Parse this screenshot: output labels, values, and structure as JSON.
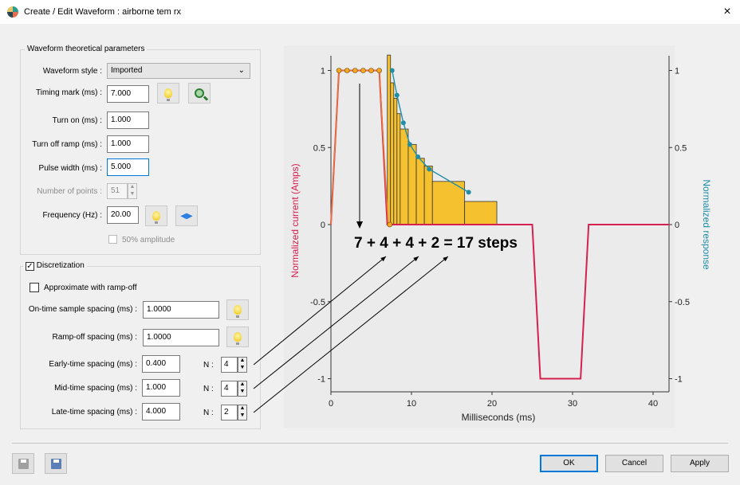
{
  "window": {
    "title": "Create / Edit Waveform : airborne tem rx",
    "close": "×"
  },
  "theoretical": {
    "group_title": "Waveform theoretical parameters",
    "waveform_style_label": "Waveform style :",
    "waveform_style_value": "Imported",
    "timing_mark_label": "Timing mark (ms) :",
    "timing_mark_value": "7.000",
    "turn_on_label": "Turn on (ms) :",
    "turn_on_value": "1.000",
    "turn_off_ramp_label": "Turn off ramp (ms) :",
    "turn_off_ramp_value": "1.000",
    "pulse_width_label": "Pulse width (ms) :",
    "pulse_width_value": "5.000",
    "num_points_label": "Number of points :",
    "num_points_value": "51",
    "frequency_label": "Frequency (Hz) :",
    "frequency_value": "20.00",
    "half_amplitude_label": "50% amplitude"
  },
  "discretization": {
    "group_title": "Discretization",
    "checked": true,
    "approx_label": "Approximate with ramp-off",
    "on_time_label": "On-time sample spacing (ms) :",
    "on_time_value": "1.0000",
    "ramp_off_label": "Ramp-off spacing (ms) :",
    "ramp_off_value": "1.0000",
    "early_label": "Early-time spacing (ms) :",
    "early_value": "0.400",
    "early_n": "4",
    "mid_label": "Mid-time spacing (ms) :",
    "mid_value": "1.000",
    "mid_n": "4",
    "late_label": "Late-time spacing (ms) :",
    "late_value": "4.000",
    "late_n": "2",
    "n_label": "N :"
  },
  "footer": {
    "ok": "OK",
    "cancel": "Cancel",
    "apply": "Apply"
  },
  "annotation": "7 +  4 + 4 + 2 = 17 steps",
  "chart_data": {
    "type": "line",
    "xlabel": "Milliseconds (ms)",
    "ylabel_left": "Normalized current (Amps)",
    "ylabel_right": "Normalized response",
    "xlim": [
      0,
      42
    ],
    "ylim": [
      -1.1,
      1.1
    ],
    "x_ticks": [
      "0",
      "10",
      "20",
      "30",
      "40"
    ],
    "y_ticks": [
      "1",
      "0.5",
      "0",
      "-0.5",
      "-1"
    ],
    "colors": {
      "current": "#d6204f",
      "ramp": "#e8743a",
      "response": "#1f8ea6",
      "bars": "#f5c12e",
      "markers": "#f5a623"
    },
    "current_waveform": {
      "x": [
        0,
        1,
        6,
        7,
        25,
        26,
        31,
        32,
        42
      ],
      "y": [
        0,
        1,
        1,
        0,
        0,
        -1,
        -1,
        0,
        0
      ]
    },
    "on_time_samples": {
      "x": [
        1,
        2,
        3,
        4,
        5,
        6,
        7.3
      ],
      "y": [
        1,
        1,
        1,
        1,
        1,
        1,
        0
      ]
    },
    "response": {
      "x": [
        7.6,
        8.2,
        9.0,
        9.8,
        10.8,
        12.2,
        17.1
      ],
      "y": [
        1.0,
        0.84,
        0.66,
        0.52,
        0.44,
        0.36,
        0.21
      ]
    },
    "bars": [
      {
        "x0": 7.0,
        "x1": 7.4,
        "y": 1.1
      },
      {
        "x0": 7.4,
        "x1": 7.8,
        "y": 0.92
      },
      {
        "x0": 7.8,
        "x1": 8.2,
        "y": 0.82
      },
      {
        "x0": 8.2,
        "x1": 8.6,
        "y": 0.72
      },
      {
        "x0": 8.6,
        "x1": 9.6,
        "y": 0.62
      },
      {
        "x0": 9.6,
        "x1": 10.6,
        "y": 0.52
      },
      {
        "x0": 10.6,
        "x1": 11.6,
        "y": 0.43
      },
      {
        "x0": 11.6,
        "x1": 12.6,
        "y": 0.38
      },
      {
        "x0": 12.6,
        "x1": 16.6,
        "y": 0.28
      },
      {
        "x0": 16.6,
        "x1": 20.6,
        "y": 0.15
      }
    ]
  }
}
